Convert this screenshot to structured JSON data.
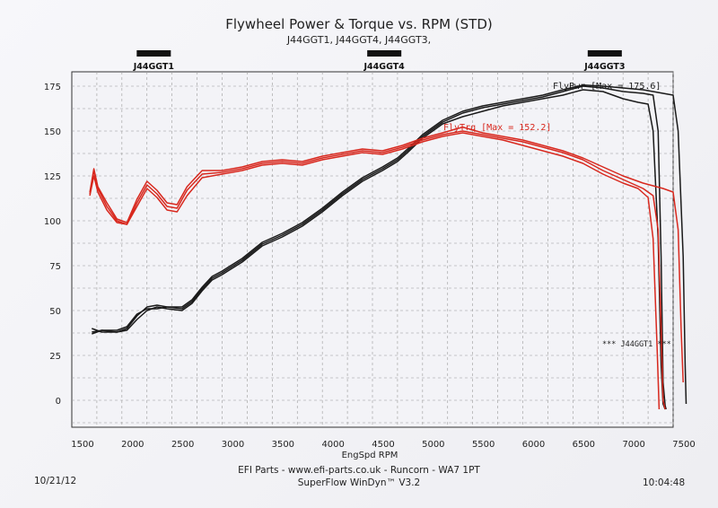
{
  "header": {
    "title": "Flywheel Power & Torque vs. RPM (STD)",
    "subtitle": "J44GGT1, J44GGT4, J44GGT3,"
  },
  "footer": {
    "date": "10/21/12",
    "time": "10:04:48",
    "line1": "EFI Parts - www.efi-parts.co.uk - Runcorn - WA7 1PT",
    "line2": "SuperFlow WinDyn™ V3.2"
  },
  "colors": {
    "power": "#1a1a1a",
    "torque": "#d8281e",
    "grid": "#9a9a9a",
    "frame": "#333333",
    "legend_bar": "#111111"
  },
  "chart_data": {
    "type": "line",
    "title": "Flywheel Power & Torque vs. RPM (STD)",
    "xlabel": "EngSpd RPM",
    "ylabel": "",
    "xlim": [
      1500,
      7500
    ],
    "ylim": [
      -15,
      183
    ],
    "x_ticks": [
      1500,
      2000,
      2500,
      3000,
      3500,
      4000,
      4500,
      5000,
      5500,
      6000,
      6500,
      7000,
      7500
    ],
    "y_ticks": [
      0,
      25,
      50,
      75,
      100,
      125,
      150,
      175
    ],
    "run_labels": [
      {
        "name": "J44GGT1",
        "rpm": 2300
      },
      {
        "name": "J44GGT4",
        "rpm": 4600
      },
      {
        "name": "J44GGT3",
        "rpm": 6800
      }
    ],
    "annotations": {
      "power_max": "FlyPwr [Max = 175.6]",
      "torque_max": "FlyTrq [Max = 152.2]",
      "run_marker": "*** J44GGT1 ***"
    },
    "series": [
      {
        "name": "FlyPwr J44GGT1",
        "kind": "power",
        "points": [
          [
            1700,
            40
          ],
          [
            1800,
            38
          ],
          [
            1950,
            38
          ],
          [
            2050,
            40
          ],
          [
            2150,
            47
          ],
          [
            2250,
            52
          ],
          [
            2350,
            53
          ],
          [
            2450,
            52
          ],
          [
            2600,
            51
          ],
          [
            2700,
            55
          ],
          [
            2800,
            62
          ],
          [
            2900,
            68
          ],
          [
            3000,
            71
          ],
          [
            3200,
            78
          ],
          [
            3400,
            87
          ],
          [
            3600,
            92
          ],
          [
            3800,
            98
          ],
          [
            4000,
            106
          ],
          [
            4200,
            115
          ],
          [
            4400,
            123
          ],
          [
            4600,
            129
          ],
          [
            4750,
            134
          ],
          [
            4850,
            139
          ],
          [
            5000,
            147
          ],
          [
            5200,
            155
          ],
          [
            5400,
            160
          ],
          [
            5600,
            163
          ],
          [
            5800,
            165
          ],
          [
            6000,
            167
          ],
          [
            6200,
            169
          ],
          [
            6400,
            172
          ],
          [
            6600,
            175
          ],
          [
            6800,
            174
          ],
          [
            7000,
            172
          ],
          [
            7200,
            171
          ],
          [
            7300,
            170
          ],
          [
            7350,
            150
          ],
          [
            7380,
            80
          ],
          [
            7400,
            10
          ],
          [
            7420,
            -3
          ],
          [
            7430,
            -5
          ]
        ]
      },
      {
        "name": "FlyPwr J44GGT4",
        "kind": "power",
        "points": [
          [
            1700,
            38
          ],
          [
            1800,
            39
          ],
          [
            1950,
            38
          ],
          [
            2050,
            39
          ],
          [
            2150,
            45
          ],
          [
            2250,
            50
          ],
          [
            2350,
            52
          ],
          [
            2450,
            51
          ],
          [
            2600,
            50
          ],
          [
            2700,
            54
          ],
          [
            2800,
            61
          ],
          [
            2900,
            67
          ],
          [
            3000,
            70
          ],
          [
            3200,
            77
          ],
          [
            3400,
            86
          ],
          [
            3600,
            91
          ],
          [
            3800,
            97
          ],
          [
            4000,
            105
          ],
          [
            4200,
            114
          ],
          [
            4400,
            122
          ],
          [
            4600,
            128
          ],
          [
            4750,
            133
          ],
          [
            4850,
            138
          ],
          [
            5000,
            146
          ],
          [
            5200,
            154
          ],
          [
            5400,
            158
          ],
          [
            5600,
            161
          ],
          [
            5800,
            164
          ],
          [
            6000,
            166
          ],
          [
            6200,
            168
          ],
          [
            6400,
            170
          ],
          [
            6600,
            173
          ],
          [
            6800,
            172
          ],
          [
            7000,
            168
          ],
          [
            7150,
            166
          ],
          [
            7250,
            165
          ],
          [
            7300,
            150
          ],
          [
            7350,
            90
          ],
          [
            7380,
            20
          ],
          [
            7400,
            -2
          ],
          [
            7420,
            -5
          ]
        ]
      },
      {
        "name": "FlyPwr J44GGT3",
        "kind": "power",
        "points": [
          [
            1700,
            37
          ],
          [
            1800,
            39
          ],
          [
            1950,
            39
          ],
          [
            2050,
            41
          ],
          [
            2150,
            48
          ],
          [
            2250,
            51
          ],
          [
            2350,
            51
          ],
          [
            2450,
            52
          ],
          [
            2600,
            52
          ],
          [
            2700,
            56
          ],
          [
            2800,
            63
          ],
          [
            2900,
            69
          ],
          [
            3000,
            72
          ],
          [
            3200,
            79
          ],
          [
            3400,
            88
          ],
          [
            3600,
            93
          ],
          [
            3800,
            99
          ],
          [
            4000,
            107
          ],
          [
            4200,
            116
          ],
          [
            4400,
            124
          ],
          [
            4600,
            130
          ],
          [
            4750,
            135
          ],
          [
            4850,
            140
          ],
          [
            5000,
            148
          ],
          [
            5200,
            156
          ],
          [
            5400,
            161
          ],
          [
            5600,
            164
          ],
          [
            5800,
            166
          ],
          [
            6000,
            168
          ],
          [
            6200,
            170
          ],
          [
            6400,
            173
          ],
          [
            6600,
            175.6
          ],
          [
            6800,
            175
          ],
          [
            7000,
            174
          ],
          [
            7200,
            173
          ],
          [
            7400,
            171
          ],
          [
            7500,
            170
          ],
          [
            7550,
            150
          ],
          [
            7600,
            80
          ],
          [
            7620,
            20
          ],
          [
            7630,
            -2
          ]
        ]
      },
      {
        "name": "FlyTrq J44GGT1",
        "kind": "torque",
        "points": [
          [
            1680,
            115
          ],
          [
            1720,
            128
          ],
          [
            1760,
            118
          ],
          [
            1850,
            108
          ],
          [
            1950,
            100
          ],
          [
            2050,
            98
          ],
          [
            2150,
            110
          ],
          [
            2250,
            120
          ],
          [
            2350,
            115
          ],
          [
            2450,
            108
          ],
          [
            2550,
            107
          ],
          [
            2650,
            117
          ],
          [
            2800,
            126
          ],
          [
            3000,
            127
          ],
          [
            3200,
            129
          ],
          [
            3400,
            132
          ],
          [
            3600,
            133
          ],
          [
            3800,
            132
          ],
          [
            4000,
            135
          ],
          [
            4200,
            137
          ],
          [
            4400,
            139
          ],
          [
            4600,
            138
          ],
          [
            4800,
            141
          ],
          [
            5000,
            145
          ],
          [
            5200,
            148
          ],
          [
            5400,
            150
          ],
          [
            5600,
            148
          ],
          [
            5800,
            146
          ],
          [
            6000,
            144
          ],
          [
            6200,
            141
          ],
          [
            6400,
            138
          ],
          [
            6600,
            134
          ],
          [
            6800,
            128
          ],
          [
            7000,
            123
          ],
          [
            7200,
            118
          ],
          [
            7300,
            114
          ],
          [
            7350,
            95
          ],
          [
            7380,
            40
          ],
          [
            7400,
            0
          ],
          [
            7420,
            -5
          ]
        ]
      },
      {
        "name": "FlyTrq J44GGT4",
        "kind": "torque",
        "points": [
          [
            1680,
            114
          ],
          [
            1720,
            125
          ],
          [
            1760,
            116
          ],
          [
            1850,
            106
          ],
          [
            1950,
            99
          ],
          [
            2050,
            98
          ],
          [
            2150,
            108
          ],
          [
            2250,
            118
          ],
          [
            2350,
            113
          ],
          [
            2450,
            106
          ],
          [
            2550,
            105
          ],
          [
            2650,
            114
          ],
          [
            2800,
            124
          ],
          [
            3000,
            126
          ],
          [
            3200,
            128
          ],
          [
            3400,
            131
          ],
          [
            3600,
            132
          ],
          [
            3800,
            131
          ],
          [
            4000,
            134
          ],
          [
            4200,
            136
          ],
          [
            4400,
            138
          ],
          [
            4600,
            137
          ],
          [
            4800,
            140
          ],
          [
            5000,
            144
          ],
          [
            5200,
            147
          ],
          [
            5400,
            149
          ],
          [
            5600,
            147
          ],
          [
            5800,
            145
          ],
          [
            6000,
            142
          ],
          [
            6200,
            139
          ],
          [
            6400,
            136
          ],
          [
            6600,
            132
          ],
          [
            6800,
            126
          ],
          [
            7000,
            121
          ],
          [
            7150,
            118
          ],
          [
            7250,
            113
          ],
          [
            7300,
            90
          ],
          [
            7340,
            30
          ],
          [
            7360,
            -5
          ]
        ]
      },
      {
        "name": "FlyTrq J44GGT3",
        "kind": "torque",
        "points": [
          [
            1680,
            116
          ],
          [
            1720,
            129
          ],
          [
            1760,
            119
          ],
          [
            1850,
            110
          ],
          [
            1950,
            101
          ],
          [
            2050,
            99
          ],
          [
            2150,
            112
          ],
          [
            2250,
            122
          ],
          [
            2350,
            117
          ],
          [
            2450,
            110
          ],
          [
            2550,
            109
          ],
          [
            2650,
            119
          ],
          [
            2800,
            128
          ],
          [
            3000,
            128
          ],
          [
            3200,
            130
          ],
          [
            3400,
            133
          ],
          [
            3600,
            134
          ],
          [
            3800,
            133
          ],
          [
            4000,
            136
          ],
          [
            4200,
            138
          ],
          [
            4400,
            140
          ],
          [
            4600,
            139
          ],
          [
            4800,
            142
          ],
          [
            5000,
            146
          ],
          [
            5200,
            149
          ],
          [
            5400,
            152.2
          ],
          [
            5600,
            149
          ],
          [
            5800,
            147
          ],
          [
            6000,
            145
          ],
          [
            6200,
            142
          ],
          [
            6400,
            139
          ],
          [
            6600,
            135
          ],
          [
            6800,
            130
          ],
          [
            7000,
            125
          ],
          [
            7200,
            121
          ],
          [
            7400,
            118
          ],
          [
            7500,
            116
          ],
          [
            7550,
            95
          ],
          [
            7580,
            40
          ],
          [
            7600,
            10
          ]
        ]
      }
    ]
  }
}
